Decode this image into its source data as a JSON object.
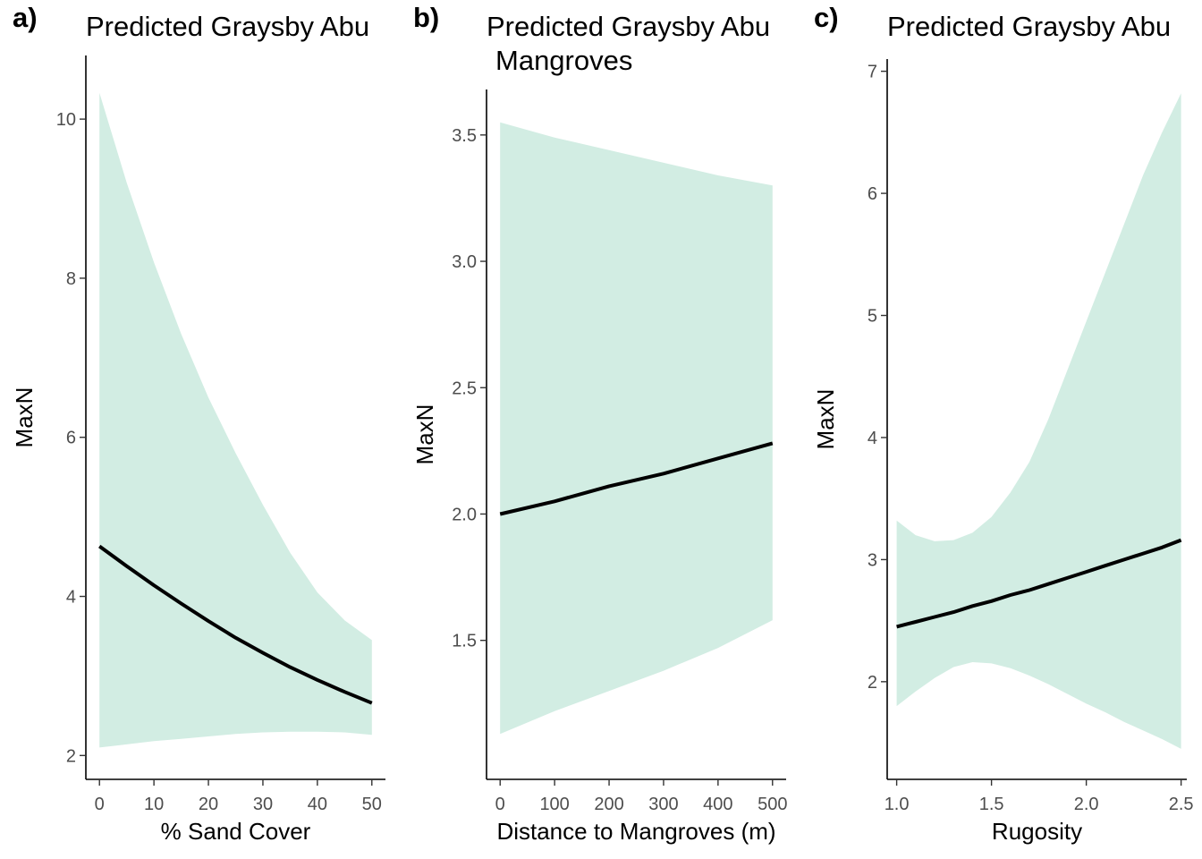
{
  "chart_data": [
    {
      "type": "line",
      "panel_label": "a)",
      "title": "Predicted Graysby Abu",
      "title_line2": "",
      "xlabel": "% Sand Cover",
      "ylabel": "MaxN",
      "xlim": [
        -2.5,
        52.5
      ],
      "ylim": [
        1.7,
        10.8
      ],
      "xticks": [
        0,
        10,
        20,
        30,
        40,
        50
      ],
      "xtick_labels": [
        "0",
        "10",
        "20",
        "30",
        "40",
        "50"
      ],
      "yticks": [
        2,
        4,
        6,
        8,
        10
      ],
      "ytick_labels": [
        "2",
        "4",
        "6",
        "8",
        "10"
      ],
      "ribbon_color": "#d2ede3",
      "line_color": "#000000",
      "x": [
        0,
        5,
        10,
        15,
        20,
        25,
        30,
        35,
        40,
        45,
        50
      ],
      "fit": [
        4.63,
        4.38,
        4.14,
        3.91,
        3.69,
        3.48,
        3.29,
        3.11,
        2.95,
        2.8,
        2.66
      ],
      "lower": [
        2.1,
        2.14,
        2.18,
        2.21,
        2.24,
        2.27,
        2.29,
        2.3,
        2.3,
        2.29,
        2.26
      ],
      "upper": [
        10.33,
        9.2,
        8.2,
        7.3,
        6.5,
        5.8,
        5.15,
        4.55,
        4.05,
        3.7,
        3.45
      ]
    },
    {
      "type": "line",
      "panel_label": "b)",
      "title": "Predicted Graysby Abu",
      "title_line2": "Mangroves",
      "xlabel": "Distance to Mangroves (m)",
      "ylabel": "MaxN",
      "xlim": [
        -25,
        525
      ],
      "ylim": [
        0.95,
        3.68
      ],
      "xticks": [
        0,
        100,
        200,
        300,
        400,
        500
      ],
      "xtick_labels": [
        "0",
        "100",
        "200",
        "300",
        "400",
        "500"
      ],
      "yticks": [
        1.5,
        2.0,
        2.5,
        3.0,
        3.5
      ],
      "ytick_labels": [
        "1.5",
        "2.0",
        "2.5",
        "3.0",
        "3.5"
      ],
      "ribbon_color": "#d2ede3",
      "line_color": "#000000",
      "x": [
        0,
        100,
        200,
        300,
        400,
        500
      ],
      "fit": [
        2.0,
        2.05,
        2.11,
        2.16,
        2.22,
        2.28
      ],
      "lower": [
        1.13,
        1.22,
        1.3,
        1.38,
        1.47,
        1.58
      ],
      "upper": [
        3.55,
        3.49,
        3.44,
        3.39,
        3.34,
        3.3
      ]
    },
    {
      "type": "line",
      "panel_label": "c)",
      "title": "Predicted Graysby Abu",
      "title_line2": "",
      "xlabel": "Rugosity",
      "ylabel": "MaxN",
      "xlim": [
        0.95,
        2.53
      ],
      "ylim": [
        1.2,
        7.1
      ],
      "xticks": [
        1.0,
        1.5,
        2.0,
        2.5
      ],
      "xtick_labels": [
        "1.0",
        "1.5",
        "2.0",
        "2.5"
      ],
      "yticks": [
        2,
        3,
        4,
        5,
        6,
        7
      ],
      "ytick_labels": [
        "2",
        "3",
        "4",
        "5",
        "6",
        "7"
      ],
      "ribbon_color": "#d2ede3",
      "line_color": "#000000",
      "x": [
        1.0,
        1.1,
        1.2,
        1.3,
        1.4,
        1.5,
        1.6,
        1.7,
        1.8,
        1.9,
        2.0,
        2.1,
        2.2,
        2.3,
        2.4,
        2.5
      ],
      "fit": [
        2.45,
        2.49,
        2.53,
        2.57,
        2.62,
        2.66,
        2.71,
        2.75,
        2.8,
        2.85,
        2.9,
        2.95,
        3.0,
        3.05,
        3.1,
        3.16
      ],
      "lower": [
        1.8,
        1.92,
        2.03,
        2.12,
        2.16,
        2.15,
        2.11,
        2.05,
        1.98,
        1.9,
        1.82,
        1.75,
        1.67,
        1.6,
        1.53,
        1.45
      ],
      "upper": [
        3.32,
        3.2,
        3.15,
        3.16,
        3.22,
        3.35,
        3.55,
        3.8,
        4.15,
        4.55,
        4.95,
        5.35,
        5.75,
        6.15,
        6.5,
        6.82
      ]
    }
  ]
}
